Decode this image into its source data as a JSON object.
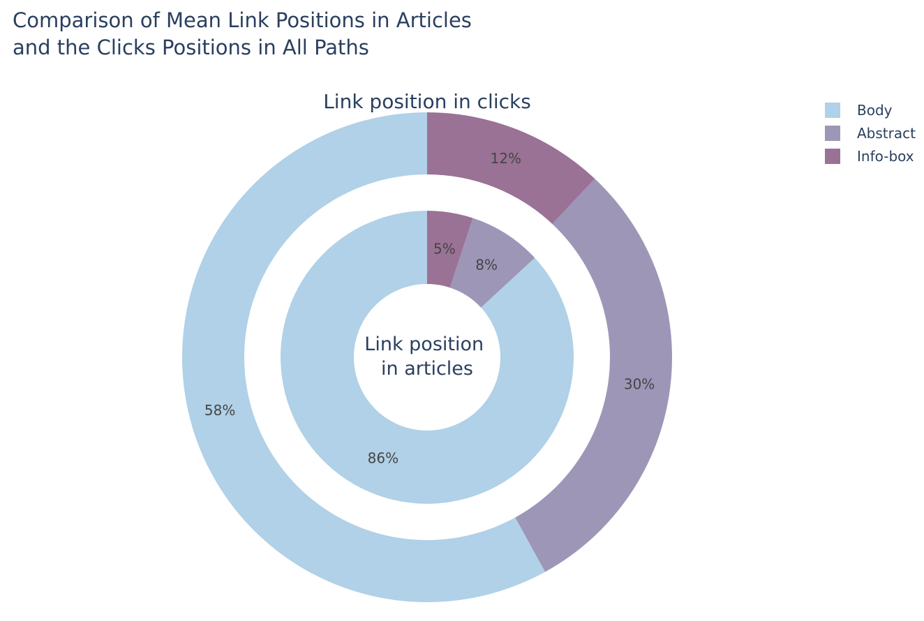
{
  "title_lines": [
    "Comparison of Mean Link Positions in Articles",
    "and the Clicks Positions in All Paths"
  ],
  "chart_data": {
    "type": "pie",
    "subtype": "nested-donut",
    "categories": [
      "Body",
      "Abstract",
      "Info-box"
    ],
    "colors": {
      "Body": "#b0d1e7",
      "Abstract": "#9e96b7",
      "Info-box": "#9a7296"
    },
    "series": [
      {
        "name": "Link position in clicks",
        "ring": "outer",
        "label": "Link position in clicks",
        "values": [
          58,
          30,
          12
        ],
        "labels": [
          "58%",
          "30%",
          "12%"
        ]
      },
      {
        "name": "Link position in articles",
        "ring": "inner",
        "label_lines": [
          "Link position",
          "in articles"
        ],
        "values": [
          86,
          8,
          5
        ],
        "labels": [
          "86%",
          "8%",
          "5%"
        ]
      }
    ],
    "legend": {
      "position": "top-right",
      "entries": [
        "Body",
        "Abstract",
        "Info-box"
      ]
    }
  }
}
